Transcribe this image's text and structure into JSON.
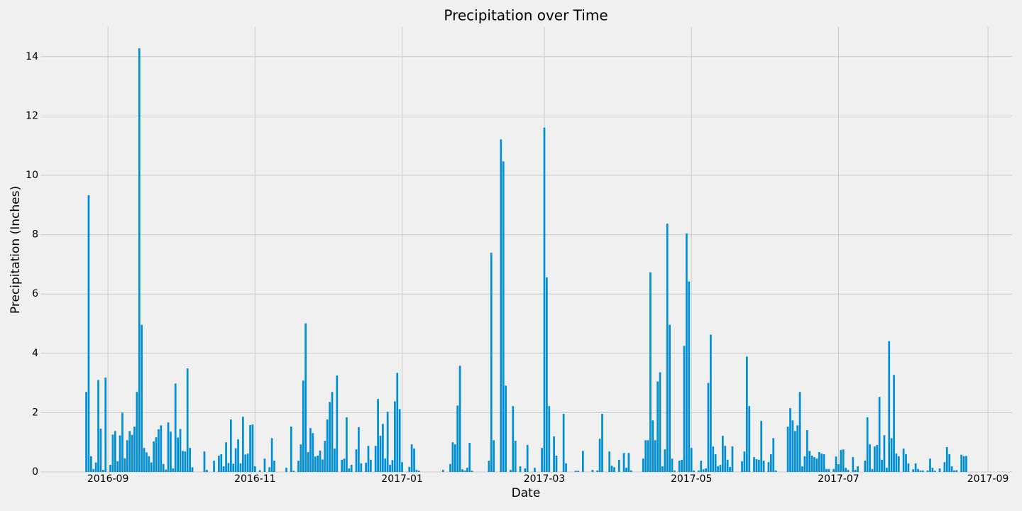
{
  "chart_data": {
    "type": "bar",
    "title": "Precipitation over Time",
    "x_label": "Date",
    "y_label": "Precipitation (Inches)",
    "color": "#008fd5",
    "grid": true,
    "xlim": [
      17017,
      17420
    ],
    "xticks": [
      {
        "value": 17045,
        "label": "2016-09"
      },
      {
        "value": 17106,
        "label": "2016-11"
      },
      {
        "value": 17167,
        "label": "2017-01"
      },
      {
        "value": 17226,
        "label": "2017-03"
      },
      {
        "value": 17287,
        "label": "2017-05"
      },
      {
        "value": 17348,
        "label": "2017-07"
      },
      {
        "value": 17410,
        "label": "2017-09"
      }
    ],
    "ylim": [
      0,
      15
    ],
    "yticks": [
      0,
      2,
      4,
      6,
      8,
      10,
      12,
      14
    ],
    "x": [
      17036,
      17037,
      17038,
      17039,
      17040,
      17041,
      17042,
      17043,
      17044,
      17046,
      17047,
      17048,
      17049,
      17050,
      17051,
      17052,
      17053,
      17054,
      17055,
      17056,
      17057,
      17058,
      17059,
      17060,
      17061,
      17062,
      17063,
      17064,
      17065,
      17066,
      17067,
      17068,
      17069,
      17070,
      17071,
      17072,
      17073,
      17074,
      17075,
      17076,
      17077,
      17078,
      17079,
      17080,
      17085,
      17086,
      17089,
      17091,
      17092,
      17093,
      17094,
      17095,
      17096,
      17097,
      17098,
      17099,
      17100,
      17101,
      17102,
      17103,
      17104,
      17105,
      17106,
      17108,
      17110,
      17112,
      17113,
      17114,
      17119,
      17121,
      17122,
      17124,
      17125,
      17126,
      17127,
      17128,
      17129,
      17130,
      17131,
      17132,
      17133,
      17134,
      17135,
      17136,
      17137,
      17138,
      17139,
      17140,
      17142,
      17143,
      17144,
      17145,
      17146,
      17148,
      17149,
      17150,
      17152,
      17153,
      17154,
      17156,
      17157,
      17158,
      17159,
      17160,
      17161,
      17162,
      17163,
      17164,
      17165,
      17166,
      17167,
      17170,
      17171,
      17172,
      17173,
      17174,
      17184,
      17187,
      17188,
      17189,
      17190,
      17191,
      17192,
      17193,
      17194,
      17195,
      17196,
      17203,
      17204,
      17205,
      17208,
      17209,
      17210,
      17212,
      17213,
      17214,
      17216,
      17218,
      17219,
      17222,
      17225,
      17226,
      17227,
      17228,
      17230,
      17231,
      17234,
      17235,
      17239,
      17240,
      17242,
      17246,
      17248,
      17249,
      17250,
      17253,
      17254,
      17255,
      17257,
      17259,
      17260,
      17261,
      17262,
      17267,
      17268,
      17269,
      17270,
      17271,
      17272,
      17273,
      17274,
      17275,
      17276,
      17277,
      17278,
      17279,
      17280,
      17282,
      17283,
      17284,
      17285,
      17286,
      17287,
      17288,
      17290,
      17291,
      17292,
      17293,
      17294,
      17295,
      17296,
      17297,
      17298,
      17299,
      17300,
      17301,
      17302,
      17303,
      17304,
      17308,
      17309,
      17310,
      17311,
      17313,
      17314,
      17315,
      17316,
      17317,
      17319,
      17320,
      17321,
      17322,
      17327,
      17328,
      17329,
      17330,
      17331,
      17332,
      17333,
      17334,
      17335,
      17336,
      17337,
      17338,
      17339,
      17340,
      17341,
      17342,
      17343,
      17344,
      17346,
      17347,
      17348,
      17349,
      17350,
      17351,
      17352,
      17354,
      17355,
      17356,
      17359,
      17360,
      17361,
      17362,
      17363,
      17364,
      17365,
      17366,
      17367,
      17368,
      17369,
      17370,
      17371,
      17372,
      17373,
      17375,
      17376,
      17377,
      17379,
      17380,
      17381,
      17382,
      17383,
      17385,
      17386,
      17387,
      17388,
      17390,
      17392,
      17393,
      17394,
      17395,
      17396,
      17397,
      17399,
      17400,
      17401
    ],
    "values": [
      2.7,
      9.33,
      0.53,
      0.1,
      0.32,
      3.1,
      1.46,
      0.07,
      3.18,
      0.24,
      1.26,
      1.38,
      0.36,
      1.23,
      2.0,
      0.46,
      1.07,
      1.38,
      1.25,
      1.53,
      2.7,
      14.28,
      4.96,
      0.81,
      0.66,
      0.53,
      0.32,
      1.03,
      1.17,
      1.44,
      1.57,
      0.27,
      0.08,
      1.67,
      1.36,
      0.12,
      2.98,
      1.16,
      1.45,
      0.71,
      0.69,
      3.49,
      0.81,
      0.16,
      0.69,
      0.07,
      0.38,
      0.55,
      0.6,
      0.19,
      1.0,
      0.3,
      1.77,
      0.28,
      0.8,
      1.1,
      0.29,
      1.86,
      0.59,
      0.62,
      1.58,
      1.6,
      0.19,
      0.06,
      0.45,
      0.16,
      1.14,
      0.38,
      0.14,
      1.53,
      0.04,
      0.38,
      0.93,
      3.08,
      5.01,
      0.67,
      1.48,
      1.31,
      0.52,
      0.55,
      0.72,
      0.42,
      1.05,
      1.77,
      2.36,
      2.7,
      0.79,
      3.25,
      0.41,
      0.45,
      1.84,
      0.12,
      0.24,
      0.76,
      1.51,
      0.29,
      0.31,
      0.88,
      0.41,
      0.88,
      2.46,
      1.22,
      1.62,
      0.45,
      2.03,
      0.24,
      0.4,
      2.38,
      3.34,
      2.12,
      0.33,
      0.17,
      0.93,
      0.79,
      0.07,
      0.04,
      0.07,
      0.27,
      1.0,
      0.93,
      2.24,
      3.58,
      0.09,
      0.05,
      0.14,
      0.98,
      0.04,
      0.38,
      7.39,
      1.07,
      11.21,
      10.47,
      2.91,
      0.07,
      2.22,
      1.05,
      0.19,
      0.12,
      0.91,
      0.14,
      0.81,
      11.61,
      6.56,
      2.22,
      1.2,
      0.55,
      1.96,
      0.29,
      0.04,
      0.04,
      0.71,
      0.07,
      0.05,
      1.12,
      1.96,
      0.69,
      0.21,
      0.16,
      0.41,
      0.64,
      0.14,
      0.64,
      0.05,
      0.45,
      1.07,
      1.07,
      6.73,
      1.74,
      1.07,
      3.05,
      3.36,
      0.19,
      0.76,
      8.37,
      4.96,
      0.45,
      0.05,
      0.38,
      0.41,
      4.25,
      8.04,
      6.42,
      0.81,
      0.05,
      0.05,
      0.38,
      0.09,
      0.12,
      3.0,
      4.63,
      0.86,
      0.6,
      0.19,
      0.24,
      1.22,
      0.88,
      0.41,
      0.17,
      0.86,
      0.36,
      0.69,
      3.89,
      2.22,
      0.5,
      0.43,
      0.41,
      1.72,
      0.38,
      0.33,
      0.6,
      1.14,
      0.05,
      1.53,
      2.15,
      1.74,
      1.38,
      1.57,
      2.7,
      0.19,
      0.53,
      1.41,
      0.71,
      0.55,
      0.5,
      0.45,
      0.67,
      0.62,
      0.6,
      0.1,
      0.1,
      0.1,
      0.52,
      0.26,
      0.74,
      0.76,
      0.14,
      0.07,
      0.5,
      0.07,
      0.19,
      0.38,
      1.84,
      0.93,
      0.1,
      0.86,
      0.91,
      2.53,
      0.41,
      1.24,
      0.14,
      4.41,
      1.14,
      3.27,
      0.62,
      0.53,
      0.79,
      0.6,
      0.29,
      0.09,
      0.29,
      0.1,
      0.05,
      0.05,
      0.05,
      0.45,
      0.14,
      0.04,
      0.12,
      0.33,
      0.84,
      0.6,
      0.19,
      0.05,
      0.06,
      0.58,
      0.53,
      0.54
    ]
  }
}
